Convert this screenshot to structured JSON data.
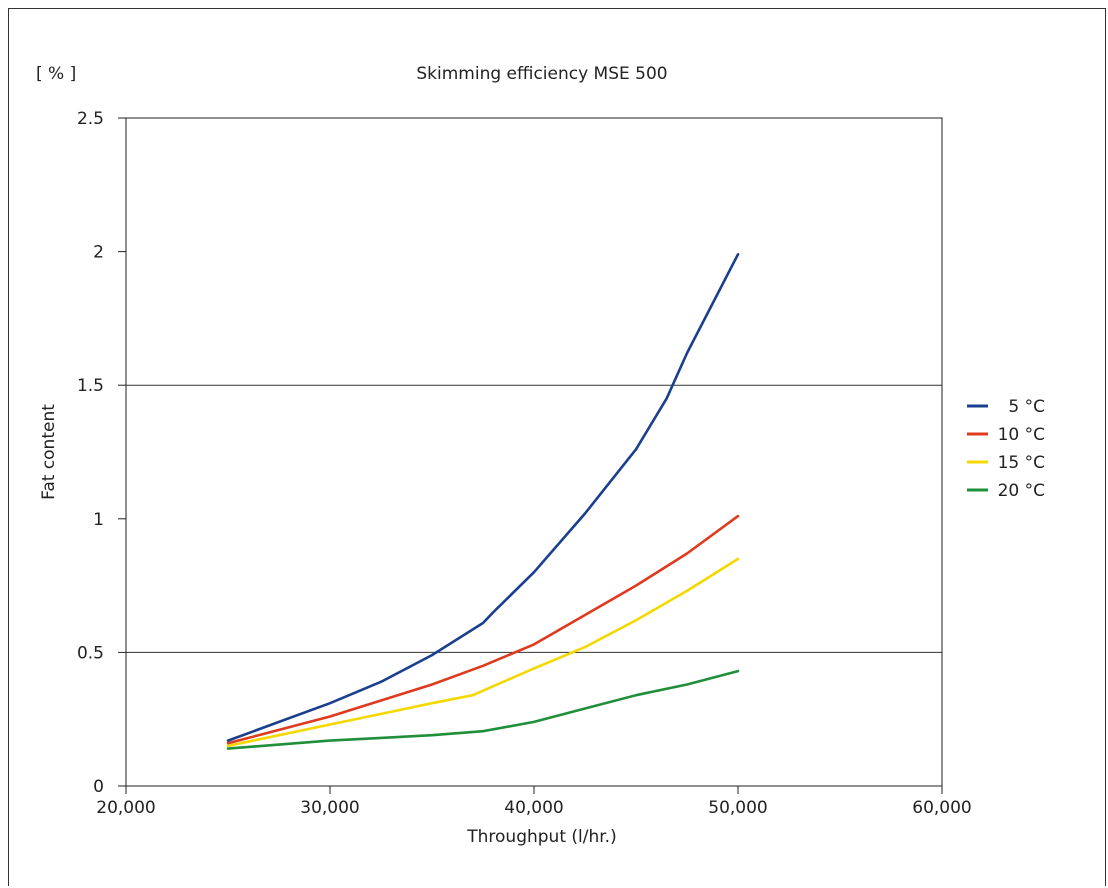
{
  "chart_data": {
    "type": "line",
    "title": "Skimming efficiency MSE 500",
    "unit_label": "[ % ]",
    "xlabel": "Throughput (l/hr.)",
    "ylabel": "Fat content",
    "xlim": [
      20000,
      60000
    ],
    "ylim": [
      0,
      2.5
    ],
    "x_ticks": [
      20000,
      30000,
      40000,
      50000,
      60000
    ],
    "x_tick_labels": [
      "20,000",
      "30,000",
      "40,000",
      "50,000",
      "60,000"
    ],
    "y_ticks": [
      0,
      0.5,
      1,
      1.5,
      2,
      2.5
    ],
    "y_tick_labels": [
      "0",
      "0.5",
      "1",
      "1.5",
      "2",
      "2.5"
    ],
    "gridlines_y": [
      0.5,
      1.5
    ],
    "legend_position": "right",
    "series": [
      {
        "name": "5 °C",
        "color": "#1a3f8f",
        "x": [
          25000,
          27500,
          30000,
          32500,
          35000,
          37500,
          38000,
          40000,
          42500,
          45000,
          46500,
          47500,
          50000
        ],
        "y": [
          0.17,
          0.24,
          0.31,
          0.39,
          0.49,
          0.61,
          0.65,
          0.8,
          1.02,
          1.26,
          1.45,
          1.62,
          1.99
        ]
      },
      {
        "name": "10 °C",
        "color": "#e03a1e",
        "x": [
          25000,
          27500,
          30000,
          32500,
          35000,
          37500,
          40000,
          42500,
          45000,
          47500,
          50000
        ],
        "y": [
          0.16,
          0.21,
          0.26,
          0.32,
          0.38,
          0.45,
          0.53,
          0.64,
          0.75,
          0.87,
          1.01
        ]
      },
      {
        "name": "15 °C",
        "color": "#f5d800",
        "x": [
          25000,
          27500,
          30000,
          32500,
          35000,
          37000,
          40000,
          42500,
          45000,
          47500,
          50000
        ],
        "y": [
          0.15,
          0.19,
          0.23,
          0.27,
          0.31,
          0.34,
          0.44,
          0.52,
          0.62,
          0.73,
          0.85
        ]
      },
      {
        "name": "20 °C",
        "color": "#1f8f3a",
        "x": [
          25000,
          27500,
          30000,
          32500,
          35000,
          37500,
          40000,
          42500,
          45000,
          47500,
          50000
        ],
        "y": [
          0.14,
          0.155,
          0.17,
          0.18,
          0.19,
          0.205,
          0.24,
          0.29,
          0.34,
          0.38,
          0.43
        ]
      }
    ]
  }
}
